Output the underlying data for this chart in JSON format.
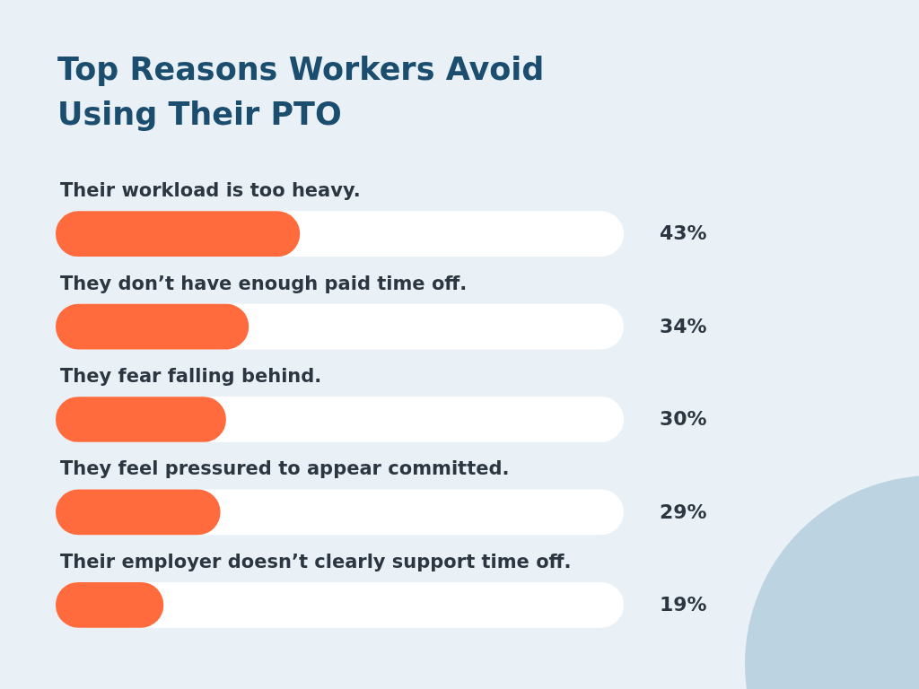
{
  "chart_data": {
    "type": "bar",
    "orientation": "horizontal",
    "title": "Top Reasons Workers Avoid Using Their PTO",
    "categories": [
      "Their workload is too heavy.",
      "They don’t have enough paid time off.",
      "They fear falling behind.",
      "They feel pressured to appear committed.",
      "Their employer doesn’t clearly support time off."
    ],
    "values": [
      43,
      34,
      30,
      29,
      19
    ],
    "value_labels": [
      "43%",
      "34%",
      "30%",
      "29%",
      "19%"
    ],
    "color": "#ff6b3d",
    "xlim": [
      0,
      100
    ],
    "tick_labels": false,
    "legend": false
  }
}
